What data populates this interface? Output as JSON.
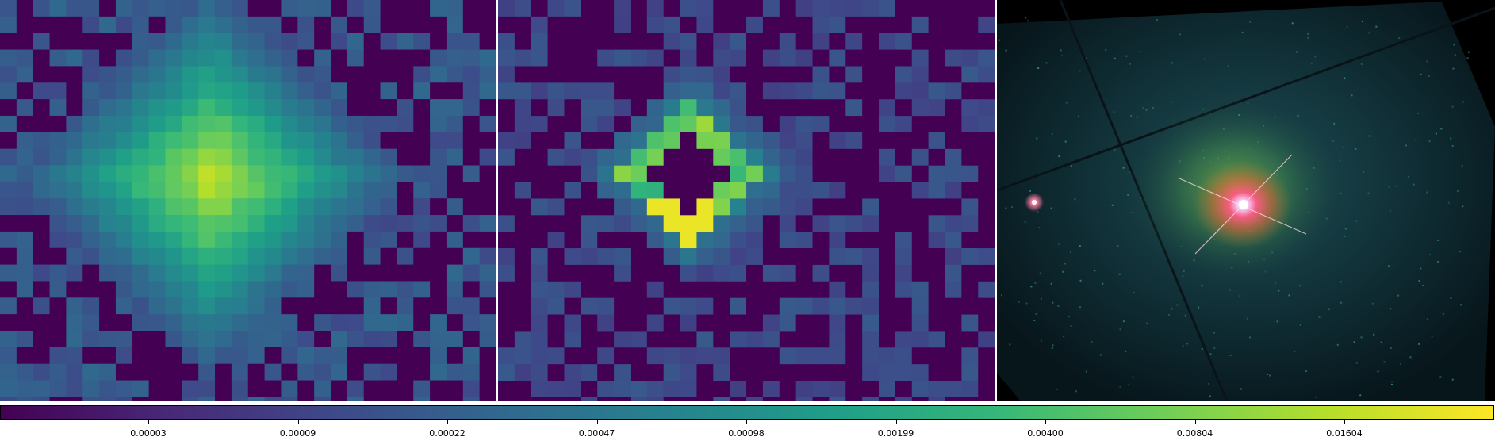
{
  "colors": {
    "colormap": [
      "#440154",
      "#482878",
      "#3e4989",
      "#31688e",
      "#26828e",
      "#1f9e89",
      "#35b779",
      "#6ece58",
      "#b5de2b",
      "#fde725"
    ]
  },
  "chart_data": {
    "type": "heatmap",
    "panels": [
      {
        "name": "psf-image",
        "description_kind": "pixelated diamond-shaped point source"
      },
      {
        "name": "residual-image",
        "description_kind": "pixelated ring residual with empty center"
      },
      {
        "name": "galaxy-composite",
        "description_kind": "false-color galaxy image with bright core and foreground star"
      }
    ],
    "colorbar": {
      "scale": "log",
      "ticks": [
        {
          "label": "0.00003",
          "value": 3e-05
        },
        {
          "label": "0.00009",
          "value": 9e-05
        },
        {
          "label": "0.00022",
          "value": 0.00022
        },
        {
          "label": "0.00047",
          "value": 0.00047
        },
        {
          "label": "0.00098",
          "value": 0.00098
        },
        {
          "label": "0.00199",
          "value": 0.00199
        },
        {
          "label": "0.00400",
          "value": 0.004
        },
        {
          "label": "0.00804",
          "value": 0.00804
        },
        {
          "label": "0.01604",
          "value": 0.01604
        }
      ]
    }
  }
}
